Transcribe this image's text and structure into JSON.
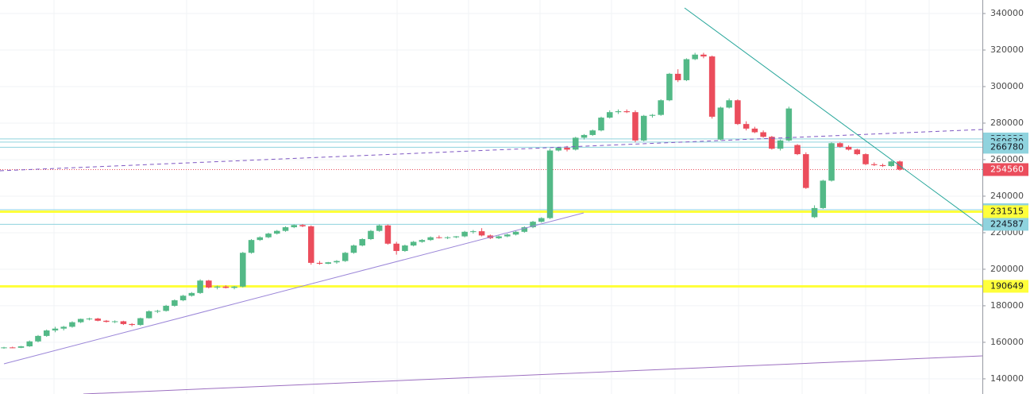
{
  "chart_data": {
    "type": "candlestick",
    "ylim": [
      131700,
      347400
    ],
    "yticks": [
      140000,
      160000,
      180000,
      200000,
      220000,
      240000,
      260000,
      280000,
      300000,
      320000,
      340000
    ],
    "grid": true,
    "up_color": "#53b987",
    "down_color": "#eb4d5c",
    "ohlc": [
      [
        157000,
        157500,
        156500,
        157200
      ],
      [
        157200,
        157600,
        156800,
        157000
      ],
      [
        157000,
        158000,
        156800,
        157800
      ],
      [
        157800,
        161000,
        157500,
        160500
      ],
      [
        160500,
        164000,
        160000,
        163500
      ],
      [
        163500,
        167000,
        163000,
        166500
      ],
      [
        166500,
        168500,
        165500,
        167500
      ],
      [
        167500,
        169000,
        166500,
        168500
      ],
      [
        168500,
        171500,
        168000,
        171000
      ],
      [
        171000,
        173000,
        170500,
        172800
      ],
      [
        172800,
        173500,
        172000,
        173000
      ],
      [
        173000,
        173400,
        171500,
        171800
      ],
      [
        171800,
        172200,
        170800,
        171200
      ],
      [
        171200,
        172000,
        170500,
        171500
      ],
      [
        171500,
        171800,
        169500,
        170000
      ],
      [
        170000,
        170500,
        168800,
        169500
      ],
      [
        169500,
        173500,
        169000,
        173200
      ],
      [
        173200,
        177500,
        173000,
        177000
      ],
      [
        177000,
        177800,
        176000,
        177200
      ],
      [
        177200,
        180500,
        176800,
        180000
      ],
      [
        180000,
        183500,
        179500,
        183000
      ],
      [
        183000,
        186000,
        182500,
        185500
      ],
      [
        185500,
        187500,
        185000,
        187000
      ],
      [
        187000,
        194500,
        186500,
        193800
      ],
      [
        193800,
        194200,
        189500,
        190000
      ],
      [
        190000,
        191000,
        189000,
        190500
      ],
      [
        190500,
        191200,
        189500,
        189800
      ],
      [
        189800,
        190800,
        189000,
        190500
      ],
      [
        190500,
        209500,
        190000,
        209000
      ],
      [
        209000,
        216500,
        208500,
        216000
      ],
      [
        216000,
        218000,
        215500,
        217500
      ],
      [
        217500,
        220000,
        217000,
        219500
      ],
      [
        219500,
        221500,
        219000,
        221000
      ],
      [
        221000,
        223500,
        220500,
        223000
      ],
      [
        223000,
        224500,
        222500,
        224200
      ],
      [
        224200,
        224700,
        223000,
        223500
      ],
      [
        223500,
        224000,
        202500,
        203500
      ],
      [
        203500,
        204500,
        202500,
        203000
      ],
      [
        203000,
        204000,
        202800,
        203800
      ],
      [
        203800,
        205000,
        203000,
        204500
      ],
      [
        204500,
        209500,
        204000,
        209000
      ],
      [
        209000,
        213500,
        208500,
        213000
      ],
      [
        213000,
        217000,
        212500,
        216500
      ],
      [
        216500,
        221500,
        216000,
        221000
      ],
      [
        221000,
        224500,
        220500,
        224000
      ],
      [
        224000,
        224500,
        213500,
        214000
      ],
      [
        214000,
        215000,
        208000,
        210000
      ],
      [
        210000,
        213500,
        209500,
        213000
      ],
      [
        213000,
        215500,
        212500,
        215000
      ],
      [
        215000,
        216500,
        214500,
        216000
      ],
      [
        216000,
        218000,
        215500,
        217500
      ],
      [
        217500,
        218500,
        216800,
        217200
      ],
      [
        217200,
        218000,
        216500,
        217500
      ],
      [
        217500,
        218200,
        217000,
        218000
      ],
      [
        218000,
        221000,
        217500,
        220500
      ],
      [
        220500,
        221500,
        219500,
        220800
      ],
      [
        220800,
        222500,
        218000,
        218500
      ],
      [
        218500,
        219000,
        216500,
        217000
      ],
      [
        217000,
        218500,
        216500,
        218000
      ],
      [
        218000,
        219500,
        217500,
        219000
      ],
      [
        219000,
        221000,
        218500,
        220500
      ],
      [
        220500,
        223500,
        220000,
        223000
      ],
      [
        223000,
        226500,
        222500,
        226000
      ],
      [
        226000,
        228500,
        225500,
        228000
      ],
      [
        228000,
        266000,
        227500,
        265000
      ],
      [
        265000,
        267000,
        264500,
        266500
      ],
      [
        266500,
        267500,
        264500,
        265500
      ],
      [
        265500,
        272500,
        265000,
        272000
      ],
      [
        272000,
        274000,
        271000,
        273500
      ],
      [
        273500,
        276500,
        273000,
        276000
      ],
      [
        276000,
        283500,
        275500,
        283000
      ],
      [
        283000,
        287000,
        282500,
        286000
      ],
      [
        286000,
        287500,
        285000,
        286500
      ],
      [
        286500,
        287500,
        285500,
        286000
      ],
      [
        286000,
        287000,
        269500,
        270500
      ],
      [
        270500,
        284500,
        270000,
        284000
      ],
      [
        284000,
        285000,
        283000,
        284500
      ],
      [
        284500,
        293000,
        284000,
        292500
      ],
      [
        292500,
        307500,
        292000,
        307000
      ],
      [
        307000,
        309500,
        302500,
        303500
      ],
      [
        303500,
        315500,
        303000,
        315000
      ],
      [
        315000,
        318500,
        314500,
        317500
      ],
      [
        317500,
        318500,
        315500,
        316500
      ],
      [
        316500,
        317000,
        282500,
        283500
      ],
      [
        271000,
        289000,
        270500,
        288500
      ],
      [
        288500,
        293500,
        288000,
        292500
      ],
      [
        292500,
        293000,
        279000,
        279500
      ],
      [
        279500,
        281000,
        276000,
        277000
      ],
      [
        277000,
        278000,
        274500,
        275000
      ],
      [
        275000,
        276000,
        272000,
        272500
      ],
      [
        272500,
        273000,
        265500,
        266000
      ],
      [
        266000,
        271000,
        265000,
        270500
      ],
      [
        270500,
        289000,
        270000,
        288000
      ],
      [
        268000,
        268500,
        262500,
        263000
      ],
      [
        263000,
        264000,
        244000,
        244500
      ],
      [
        228500,
        235000,
        228000,
        233500
      ],
      [
        233500,
        249000,
        233000,
        248500
      ],
      [
        248500,
        269500,
        248000,
        269000
      ],
      [
        269000,
        269500,
        266500,
        267000
      ],
      [
        267000,
        267800,
        265000,
        265500
      ],
      [
        265500,
        266000,
        262500,
        263000
      ],
      [
        263000,
        263500,
        257000,
        257500
      ],
      [
        257500,
        258500,
        256500,
        257000
      ],
      [
        257000,
        257800,
        256000,
        256500
      ],
      [
        256500,
        259500,
        256000,
        259000
      ],
      [
        259000,
        259500,
        254000,
        254560
      ]
    ],
    "price_lines": [
      {
        "value": 271338,
        "color": "#8fd3de",
        "label_color": "#8fd3de"
      },
      {
        "value": 269630,
        "color": "#8fd3de",
        "label_color": "#8fd3de"
      },
      {
        "value": 266780,
        "color": "#8fd3de",
        "label_color": "#8fd3de"
      },
      {
        "value": 254560,
        "color": "#eb4d5c",
        "label_color": "#eb4d5c"
      },
      {
        "value": 232606,
        "color": "#8fd3de",
        "label_color": "#8fd3de"
      },
      {
        "value": 231515,
        "color": "#ffff3b",
        "label_color": "#ffff3b"
      },
      {
        "value": 224587,
        "color": "#8fd3de",
        "label_color": "#8fd3de"
      },
      {
        "value": 190649,
        "color": "#ffff3b",
        "label_color": "#ffff3b"
      }
    ]
  }
}
